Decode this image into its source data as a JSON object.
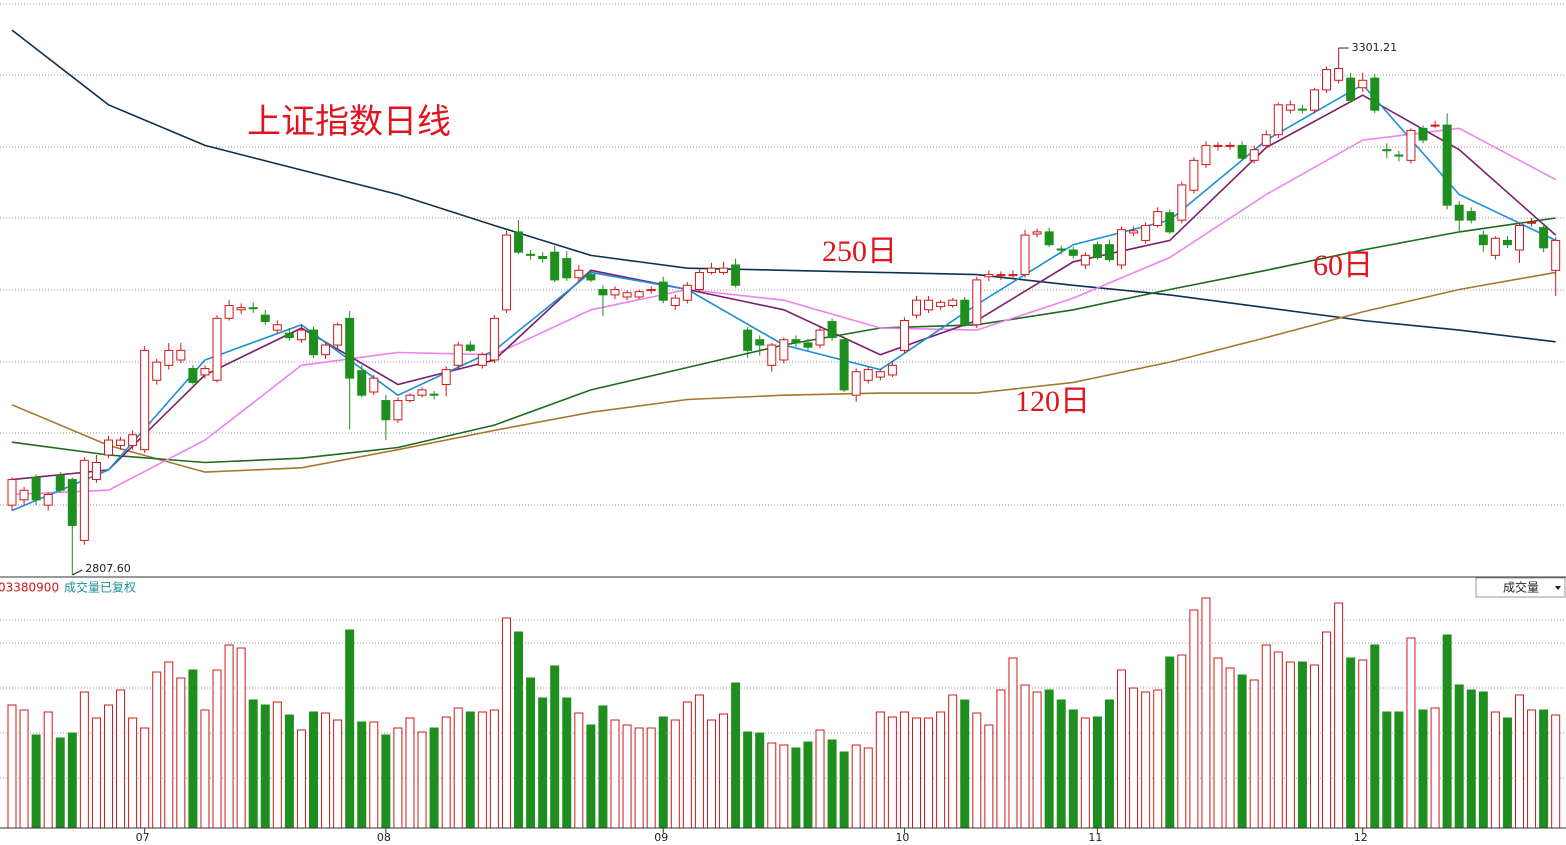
{
  "chart_data": {
    "type": "candlestick",
    "title": "上证指数日线",
    "max_label": "3301.21",
    "min_label": "2807.60",
    "volume_title": "03380900",
    "volume_note": "成交量已复权",
    "volume_selector": "成交量",
    "ylim": [
      2807.6,
      3346.2
    ],
    "vlim": [
      0,
      230
    ],
    "up_color": "#d01818",
    "down_color": "#1e8f1e",
    "categories": [
      null,
      null,
      null,
      null,
      null,
      null,
      null,
      null,
      null,
      null,
      null,
      "07",
      null,
      null,
      null,
      null,
      null,
      null,
      null,
      null,
      null,
      null,
      null,
      null,
      null,
      null,
      null,
      null,
      null,
      null,
      null,
      "08",
      null,
      null,
      null,
      null,
      null,
      null,
      null,
      null,
      null,
      null,
      null,
      null,
      null,
      null,
      null,
      null,
      null,
      null,
      null,
      null,
      null,
      null,
      "09",
      null,
      null,
      null,
      null,
      null,
      null,
      null,
      null,
      null,
      null,
      null,
      null,
      null,
      null,
      null,
      null,
      null,
      null,
      null,
      "10",
      null,
      null,
      null,
      null,
      null,
      null,
      null,
      null,
      null,
      null,
      null,
      null,
      null,
      null,
      null,
      "11",
      null,
      null,
      null,
      null,
      null,
      null,
      null,
      null,
      null,
      null,
      null,
      null,
      null,
      null,
      null,
      null,
      null,
      null,
      null,
      null,
      null,
      "12",
      null,
      null,
      null,
      null,
      null,
      null,
      null,
      null,
      null,
      null,
      null,
      null,
      null,
      null,
      null,
      null
    ],
    "candles": [
      [
        2873,
        2899,
        2868,
        2897
      ],
      [
        2878,
        2890,
        2873,
        2887
      ],
      [
        2899,
        2902,
        2873,
        2878
      ],
      [
        2873,
        2885,
        2868,
        2883
      ],
      [
        2901,
        2904,
        2885,
        2887
      ],
      [
        2897,
        2899,
        2807.6,
        2854
      ],
      [
        2840,
        2918,
        2836,
        2915
      ],
      [
        2897,
        2920,
        2894,
        2913
      ],
      [
        2920,
        2938,
        2917,
        2934
      ],
      [
        2929,
        2937,
        2925,
        2934
      ],
      [
        2929,
        2943,
        2925,
        2939
      ],
      [
        2925,
        3022,
        2922,
        3018
      ],
      [
        2990,
        3010,
        2986,
        3007
      ],
      [
        3004,
        3025,
        3000,
        3018
      ],
      [
        3009,
        3025,
        3006,
        3018
      ],
      [
        3001,
        3004,
        2986,
        2988
      ],
      [
        2995,
        3004,
        2992,
        3001
      ],
      [
        2990,
        3051,
        2988,
        3048
      ],
      [
        3048,
        3065,
        3046,
        3060
      ],
      [
        3056,
        3062,
        3052,
        3058
      ],
      [
        3058,
        3063,
        3053,
        3057
      ],
      [
        3051,
        3056,
        3042,
        3045
      ],
      [
        3037,
        3046,
        3034,
        3042
      ],
      [
        3034,
        3039,
        3027,
        3030
      ],
      [
        3028,
        3042,
        3025,
        3037
      ],
      [
        3037,
        3040,
        3011,
        3014
      ],
      [
        3014,
        3026,
        3010,
        3023
      ],
      [
        3023,
        3044,
        3020,
        3042
      ],
      [
        3048,
        3055,
        2944,
        2992
      ],
      [
        2999,
        3004,
        2974,
        2976
      ],
      [
        2979,
        2995,
        2976,
        2992
      ],
      [
        2971,
        2976,
        2934,
        2953
      ],
      [
        2953,
        2974,
        2950,
        2971
      ],
      [
        2971,
        2978,
        2969,
        2976
      ],
      [
        2976,
        2983,
        2974,
        2981
      ],
      [
        2977,
        2980,
        2972,
        2976
      ],
      [
        2986,
        3003,
        2975,
        3000
      ],
      [
        3004,
        3026,
        3001,
        3023
      ],
      [
        3023,
        3027,
        3016,
        3018
      ],
      [
        3004,
        3016,
        3001,
        3014
      ],
      [
        3009,
        3051,
        3006,
        3048
      ],
      [
        3056,
        3130,
        3053,
        3126
      ],
      [
        3129,
        3140,
        3108,
        3110
      ],
      [
        3108,
        3112,
        3103,
        3107
      ],
      [
        3106,
        3110,
        3100,
        3104
      ],
      [
        3110,
        3116,
        3082,
        3084
      ],
      [
        3104,
        3111,
        3083,
        3086
      ],
      [
        3086,
        3098,
        3083,
        3093
      ],
      [
        3089,
        3093,
        3082,
        3084
      ],
      [
        3075,
        3079,
        3050,
        3070
      ],
      [
        3070,
        3078,
        3066,
        3075
      ],
      [
        3068,
        3074,
        3065,
        3072
      ],
      [
        3068,
        3075,
        3066,
        3073
      ],
      [
        3074,
        3078,
        3071,
        3075
      ],
      [
        3082,
        3087,
        3062,
        3065
      ],
      [
        3060,
        3070,
        3056,
        3067
      ],
      [
        3065,
        3082,
        3062,
        3079
      ],
      [
        3075,
        3094,
        3072,
        3091
      ],
      [
        3091,
        3100,
        3089,
        3095
      ],
      [
        3091,
        3101,
        3089,
        3095
      ],
      [
        3098,
        3104,
        3077,
        3079
      ],
      [
        3037,
        3040,
        3011,
        3018
      ],
      [
        3028,
        3032,
        3013,
        3023
      ],
      [
        3004,
        3025,
        2998,
        3023
      ],
      [
        3009,
        3030,
        3006,
        3028
      ],
      [
        3028,
        3032,
        3021,
        3025
      ],
      [
        3025,
        3029,
        3018,
        3021
      ],
      [
        3023,
        3040,
        3020,
        3037
      ],
      [
        3045,
        3048,
        3027,
        3030
      ],
      [
        3028,
        3031,
        2979,
        2981
      ],
      [
        2976,
        3001,
        2970,
        2998
      ],
      [
        2990,
        3003,
        2987,
        3000
      ],
      [
        2993,
        3001,
        2990,
        2998
      ],
      [
        2995,
        3008,
        2993,
        3004
      ],
      [
        3018,
        3049,
        3015,
        3046
      ],
      [
        3051,
        3069,
        3048,
        3065
      ],
      [
        3056,
        3069,
        3053,
        3065
      ],
      [
        3059,
        3065,
        3056,
        3063
      ],
      [
        3060,
        3067,
        3058,
        3065
      ],
      [
        3065,
        3068,
        3040,
        3042
      ],
      [
        3042,
        3087,
        3039,
        3084
      ],
      [
        3087,
        3093,
        3083,
        3089
      ],
      [
        3088,
        3092,
        3084,
        3089
      ],
      [
        3088,
        3093,
        3085,
        3089
      ],
      [
        3089,
        3131,
        3086,
        3126
      ],
      [
        3127,
        3132,
        3124,
        3129
      ],
      [
        3129,
        3133,
        3115,
        3117
      ],
      [
        3113,
        3116,
        3108,
        3112
      ],
      [
        3112,
        3115,
        3104,
        3107
      ],
      [
        3098,
        3110,
        3094,
        3107
      ],
      [
        3117,
        3120,
        3103,
        3105
      ],
      [
        3117,
        3122,
        3101,
        3103
      ],
      [
        3098,
        3134,
        3094,
        3131
      ],
      [
        3128,
        3134,
        3125,
        3130
      ],
      [
        3121,
        3138,
        3118,
        3135
      ],
      [
        3135,
        3152,
        3133,
        3148
      ],
      [
        3147,
        3150,
        3127,
        3129
      ],
      [
        3140,
        3176,
        3137,
        3173
      ],
      [
        3168,
        3199,
        3165,
        3196
      ],
      [
        3192,
        3214,
        3189,
        3210
      ],
      [
        3209,
        3213,
        3205,
        3210
      ],
      [
        3210,
        3213,
        3206,
        3210
      ],
      [
        3210,
        3214,
        3196,
        3198
      ],
      [
        3196,
        3210,
        3193,
        3206
      ],
      [
        3210,
        3224,
        3207,
        3220
      ],
      [
        3220,
        3250,
        3217,
        3248
      ],
      [
        3243,
        3252,
        3240,
        3248
      ],
      [
        3244,
        3248,
        3240,
        3243
      ],
      [
        3243,
        3264,
        3240,
        3262
      ],
      [
        3262,
        3284,
        3259,
        3281
      ],
      [
        3271,
        3301.21,
        3268,
        3282
      ],
      [
        3273,
        3278,
        3250,
        3252
      ],
      [
        3264,
        3278,
        3260,
        3271
      ],
      [
        3273,
        3277,
        3240,
        3243
      ],
      [
        3206,
        3212,
        3198,
        3205
      ],
      [
        3201,
        3205,
        3195,
        3200
      ],
      [
        3196,
        3226,
        3193,
        3224
      ],
      [
        3226,
        3229,
        3212,
        3215
      ],
      [
        3229,
        3233,
        3226,
        3229
      ],
      [
        3229,
        3240,
        3150,
        3154
      ],
      [
        3154,
        3158,
        3130,
        3140
      ],
      [
        3148,
        3152,
        3137,
        3140
      ],
      [
        3126,
        3130,
        3110,
        3117
      ],
      [
        3107,
        3125,
        3103,
        3123
      ],
      [
        3121,
        3125,
        3114,
        3117
      ],
      [
        3112,
        3138,
        3100,
        3135
      ],
      [
        3138,
        3142,
        3134,
        3138
      ],
      [
        3133,
        3137,
        3110,
        3114
      ],
      [
        3093,
        3124,
        3069,
        3121
      ]
    ],
    "volumes": [
      123,
      118,
      93,
      116,
      90,
      95,
      136,
      110,
      123,
      138,
      110,
      100,
      156,
      166,
      150,
      158,
      118,
      158,
      183,
      180,
      128,
      123,
      126,
      113,
      98,
      116,
      115,
      108,
      198,
      106,
      106,
      93,
      100,
      110,
      96,
      100,
      111,
      120,
      116,
      116,
      118,
      210,
      196,
      150,
      130,
      162,
      130,
      115,
      103,
      122,
      108,
      103,
      100,
      100,
      111,
      108,
      126,
      133,
      108,
      114,
      145,
      96,
      95,
      85,
      83,
      80,
      86,
      98,
      88,
      76,
      83,
      80,
      116,
      111,
      116,
      110,
      110,
      116,
      133,
      128,
      115,
      103,
      138,
      170,
      143,
      136,
      138,
      128,
      118,
      110,
      111,
      128,
      158,
      140,
      136,
      138,
      171,
      173,
      218,
      230,
      170,
      160,
      153,
      148,
      183,
      176,
      166,
      166,
      163,
      196,
      225,
      170,
      168,
      183,
      116,
      116,
      190,
      118,
      120,
      193,
      143,
      138,
      136,
      116,
      110,
      133,
      118,
      118,
      113
    ],
    "line_x": [
      0,
      8,
      16,
      24,
      32,
      40,
      48,
      56,
      64,
      72,
      80,
      88,
      96,
      104,
      112,
      120,
      128
    ],
    "lines": [
      {
        "name": "250日",
        "color": "#10304f",
        "values": [
          3318,
          3248,
          3210,
          3187,
          3164,
          3135,
          3107,
          3095,
          3093,
          3091,
          3089,
          3079,
          3070,
          3058,
          3046,
          3037,
          3026
        ]
      },
      {
        "name": "120日",
        "color": "#a8762e",
        "values": [
          2967,
          2929,
          2904,
          2908,
          2925,
          2943,
          2960,
          2972,
          2976,
          2978,
          2978,
          2988,
          3007,
          3030,
          3054,
          3075,
          3091
        ]
      },
      {
        "name": "60日",
        "color": "#1f6a1f",
        "values": [
          2932,
          2920,
          2913,
          2917,
          2927,
          2948,
          2981,
          3002,
          3023,
          3039,
          3042,
          3056,
          3075,
          3093,
          3112,
          3129,
          3142
        ]
      },
      {
        "color": "#ee82ee",
        "values": [
          2883,
          2887,
          2934,
          3004,
          3016,
          3014,
          3056,
          3075,
          3065,
          3039,
          3037,
          3067,
          3105,
          3164,
          3215,
          3226,
          3178
        ]
      },
      {
        "color": "#7a1f6e",
        "values": [
          2897,
          2906,
          2995,
          3039,
          2986,
          3009,
          3093,
          3075,
          3056,
          3014,
          3046,
          3101,
          3121,
          3208,
          3257,
          3206,
          3126
        ]
      },
      {
        "color": "#1b8fd8",
        "values": [
          2868,
          2906,
          3009,
          3042,
          2976,
          3018,
          3091,
          3075,
          3023,
          3000,
          3061,
          3117,
          3140,
          3215,
          3267,
          3164,
          3121
        ]
      }
    ]
  }
}
